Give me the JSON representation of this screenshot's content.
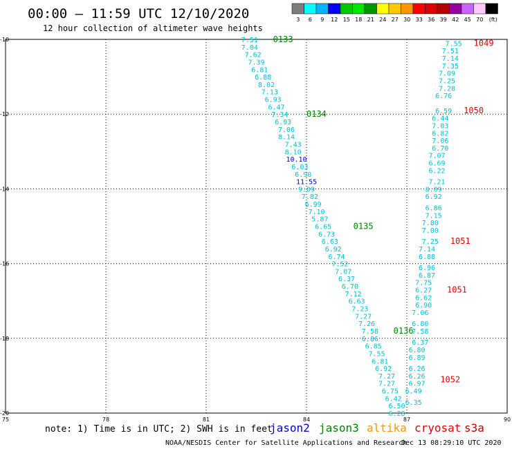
{
  "header": {
    "title": "00:00 — 11:59 UTC 12/10/2020",
    "subtitle": "12 hour collection of altimeter wave heights"
  },
  "colorbar": {
    "labels": [
      "3",
      "6",
      "9",
      "12",
      "15",
      "18",
      "21",
      "24",
      "27",
      "30",
      "33",
      "36",
      "39",
      "42",
      "45",
      "70",
      "(ft)"
    ],
    "colors": [
      "#7d7d7d",
      "#00ffff",
      "#00b4ff",
      "#0000ff",
      "#00c800",
      "#00e600",
      "#009600",
      "#ffff00",
      "#ffc800",
      "#ff9600",
      "#ff0000",
      "#dc0000",
      "#b40000",
      "#9600a0",
      "#c864ff",
      "#ffc8ff",
      "#000000"
    ]
  },
  "chart_data": {
    "type": "scatter",
    "xlim": [
      75,
      90
    ],
    "ylim": [
      -20,
      -10
    ],
    "x_ticks": [
      "75",
      "78",
      "81",
      "84",
      "87",
      "90"
    ],
    "y_ticks": [
      "-10",
      "-12",
      "-14",
      "-16",
      "-18",
      "-20"
    ],
    "colors": {
      "cyan": "#00c0d8",
      "blue": "#0000d0",
      "green": "#008000",
      "red": "#e00000"
    },
    "series": [
      {
        "satellite": "jason3",
        "points": [
          {
            "x": 82.3,
            "y": -10.0,
            "v": "7.51"
          },
          {
            "x": 82.3,
            "y": -10.2,
            "v": "7.04"
          },
          {
            "x": 82.4,
            "y": -10.4,
            "v": "7.62"
          },
          {
            "x": 82.5,
            "y": -10.6,
            "v": "7.39"
          },
          {
            "x": 82.6,
            "y": -10.8,
            "v": "6.81"
          },
          {
            "x": 82.7,
            "y": -11.0,
            "v": "6.88"
          },
          {
            "x": 82.8,
            "y": -11.2,
            "v": "8.02"
          },
          {
            "x": 82.9,
            "y": -11.4,
            "v": "7.13"
          },
          {
            "x": 83.0,
            "y": -11.6,
            "v": "6.93"
          },
          {
            "x": 83.1,
            "y": -11.8,
            "v": "6.47"
          },
          {
            "x": 83.2,
            "y": -12.0,
            "v": "7.34"
          },
          {
            "x": 83.3,
            "y": -12.2,
            "v": "6.93"
          },
          {
            "x": 83.4,
            "y": -12.4,
            "v": "7.06"
          },
          {
            "x": 83.4,
            "y": -12.6,
            "v": "8.14"
          },
          {
            "x": 83.6,
            "y": -12.8,
            "v": "7.43"
          },
          {
            "x": 83.6,
            "y": -13.0,
            "v": "8.10"
          },
          {
            "x": 83.7,
            "y": -13.2,
            "v": "10.10",
            "c": "blue"
          },
          {
            "x": 83.8,
            "y": -13.4,
            "v": "6.03"
          },
          {
            "x": 83.9,
            "y": -13.6,
            "v": "6.90"
          },
          {
            "x": 84.0,
            "y": -13.8,
            "v": "11.55",
            "c": "blue"
          },
          {
            "x": 84.0,
            "y": -14.0,
            "v": "9.09"
          },
          {
            "x": 84.1,
            "y": -14.2,
            "v": "7.82"
          },
          {
            "x": 84.2,
            "y": -14.4,
            "v": "6.99"
          },
          {
            "x": 84.3,
            "y": -14.6,
            "v": "7.10"
          },
          {
            "x": 84.4,
            "y": -14.8,
            "v": "5.87"
          },
          {
            "x": 84.5,
            "y": -15.0,
            "v": "6.65"
          },
          {
            "x": 84.6,
            "y": -15.2,
            "v": "6.73"
          },
          {
            "x": 84.7,
            "y": -15.4,
            "v": "6.63"
          },
          {
            "x": 84.8,
            "y": -15.6,
            "v": "6.92"
          },
          {
            "x": 84.9,
            "y": -15.8,
            "v": "6.74"
          },
          {
            "x": 85.0,
            "y": -16.0,
            "v": "7.52"
          },
          {
            "x": 85.1,
            "y": -16.2,
            "v": "7.07"
          },
          {
            "x": 85.2,
            "y": -16.4,
            "v": "6.37"
          },
          {
            "x": 85.3,
            "y": -16.6,
            "v": "6.70"
          },
          {
            "x": 85.4,
            "y": -16.8,
            "v": "7.12"
          },
          {
            "x": 85.5,
            "y": -17.0,
            "v": "6.63"
          },
          {
            "x": 85.6,
            "y": -17.2,
            "v": "7.23"
          },
          {
            "x": 85.7,
            "y": -17.4,
            "v": "7.27"
          },
          {
            "x": 85.8,
            "y": -17.6,
            "v": "7.26"
          },
          {
            "x": 85.9,
            "y": -17.8,
            "v": "7.58"
          },
          {
            "x": 85.9,
            "y": -18.0,
            "v": "6.86"
          },
          {
            "x": 86.0,
            "y": -18.2,
            "v": "6.85"
          },
          {
            "x": 86.1,
            "y": -18.4,
            "v": "7.55"
          },
          {
            "x": 86.2,
            "y": -18.6,
            "v": "6.81"
          },
          {
            "x": 86.3,
            "y": -18.8,
            "v": "6.92"
          },
          {
            "x": 86.4,
            "y": -19.0,
            "v": "7.27"
          },
          {
            "x": 86.4,
            "y": -19.2,
            "v": "7.27"
          },
          {
            "x": 86.5,
            "y": -19.4,
            "v": "6.75"
          },
          {
            "x": 86.6,
            "y": -19.6,
            "v": "6.42"
          },
          {
            "x": 86.7,
            "y": -19.8,
            "v": "6.50"
          },
          {
            "x": 86.7,
            "y": -20.0,
            "v": "6.28"
          }
        ],
        "passes": [
          {
            "x": 83.0,
            "y": -10.0,
            "label": "0133"
          },
          {
            "x": 84.0,
            "y": -12.0,
            "label": "0134"
          },
          {
            "x": 85.4,
            "y": -15.0,
            "label": "0135"
          },
          {
            "x": 86.6,
            "y": -17.8,
            "label": "0136"
          }
        ]
      },
      {
        "satellite": "cryosat",
        "points": [
          {
            "x": 88.4,
            "y": -10.1,
            "v": "7.55"
          },
          {
            "x": 88.3,
            "y": -10.3,
            "v": "7.51"
          },
          {
            "x": 88.3,
            "y": -10.5,
            "v": "7.14"
          },
          {
            "x": 88.3,
            "y": -10.7,
            "v": "7.35"
          },
          {
            "x": 88.2,
            "y": -10.9,
            "v": "7.09"
          },
          {
            "x": 88.2,
            "y": -11.1,
            "v": "7.25"
          },
          {
            "x": 88.2,
            "y": -11.3,
            "v": "7.28"
          },
          {
            "x": 88.1,
            "y": -11.5,
            "v": "6.76"
          },
          {
            "x": 88.1,
            "y": -11.9,
            "v": "6.59"
          },
          {
            "x": 88.0,
            "y": -12.1,
            "v": "6.44"
          },
          {
            "x": 88.0,
            "y": -12.3,
            "v": "7.03"
          },
          {
            "x": 88.0,
            "y": -12.5,
            "v": "6.82"
          },
          {
            "x": 88.0,
            "y": -12.7,
            "v": "7.06"
          },
          {
            "x": 88.0,
            "y": -12.9,
            "v": "6.70"
          },
          {
            "x": 87.9,
            "y": -13.1,
            "v": "7.07"
          },
          {
            "x": 87.9,
            "y": -13.3,
            "v": "6.69"
          },
          {
            "x": 87.9,
            "y": -13.5,
            "v": "6.22"
          },
          {
            "x": 87.9,
            "y": -13.8,
            "v": "7.21"
          },
          {
            "x": 87.8,
            "y": -14.0,
            "v": "8.09"
          },
          {
            "x": 87.8,
            "y": -14.2,
            "v": "6.92"
          },
          {
            "x": 87.8,
            "y": -14.5,
            "v": "6.86"
          },
          {
            "x": 87.8,
            "y": -14.7,
            "v": "7.15"
          },
          {
            "x": 87.7,
            "y": -14.9,
            "v": "7.80"
          },
          {
            "x": 87.7,
            "y": -15.1,
            "v": "7.00"
          },
          {
            "x": 87.7,
            "y": -15.4,
            "v": "7.25"
          },
          {
            "x": 87.6,
            "y": -15.6,
            "v": "7.14"
          },
          {
            "x": 87.6,
            "y": -15.8,
            "v": "6.88"
          },
          {
            "x": 87.6,
            "y": -16.1,
            "v": "6.96"
          },
          {
            "x": 87.6,
            "y": -16.3,
            "v": "6.87"
          },
          {
            "x": 87.5,
            "y": -16.5,
            "v": "7.75"
          },
          {
            "x": 87.5,
            "y": -16.7,
            "v": "6.27"
          },
          {
            "x": 87.5,
            "y": -16.9,
            "v": "6.62"
          },
          {
            "x": 87.5,
            "y": -17.1,
            "v": "6.90"
          },
          {
            "x": 87.4,
            "y": -17.3,
            "v": "7.06"
          },
          {
            "x": 87.4,
            "y": -17.6,
            "v": "6.80"
          },
          {
            "x": 87.4,
            "y": -17.8,
            "v": "7.58"
          },
          {
            "x": 87.4,
            "y": -18.1,
            "v": "6.37"
          },
          {
            "x": 87.3,
            "y": -18.3,
            "v": "6.80"
          },
          {
            "x": 87.3,
            "y": -18.5,
            "v": "6.89"
          },
          {
            "x": 87.3,
            "y": -18.8,
            "v": "6.26"
          },
          {
            "x": 87.3,
            "y": -19.0,
            "v": "6.26"
          },
          {
            "x": 87.3,
            "y": -19.2,
            "v": "6.97"
          },
          {
            "x": 87.2,
            "y": -19.4,
            "v": "6.49"
          },
          {
            "x": 87.2,
            "y": -19.7,
            "v": "6.35"
          }
        ],
        "passes": [
          {
            "x": 89.0,
            "y": -10.1,
            "label": "1049"
          },
          {
            "x": 88.7,
            "y": -11.9,
            "label": "1050"
          },
          {
            "x": 88.3,
            "y": -15.4,
            "label": "1051"
          },
          {
            "x": 88.2,
            "y": -16.7,
            "label": "1051"
          },
          {
            "x": 88.0,
            "y": -19.1,
            "label": "1052"
          }
        ]
      }
    ]
  },
  "footer": {
    "note": "note:  1) Time is in UTC; 2) SWH is in feet",
    "legend": [
      {
        "label": "jason2",
        "color": "#0000d0"
      },
      {
        "label": "jason3",
        "color": "#008000"
      },
      {
        "label": "altika",
        "color": "#ff9600"
      },
      {
        "label": "cryosat",
        "color": "#e00000"
      },
      {
        "label": "s3a",
        "color": "#c00000"
      }
    ],
    "credit": "NOAA/NESDIS Center for Satellite Applications and Research",
    "timestamp": "Dec 13 08:29:10 UTC 2020"
  }
}
